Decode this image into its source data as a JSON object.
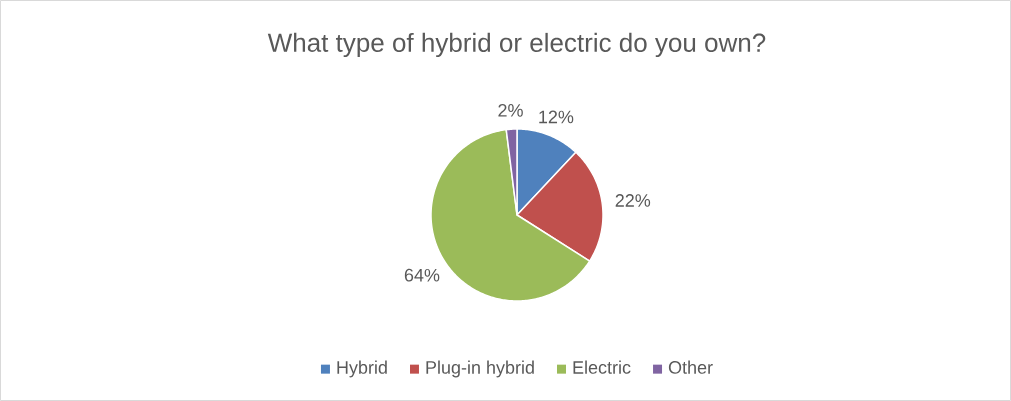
{
  "chart_data": {
    "type": "pie",
    "title": "What type of hybrid or electric do you own?",
    "categories": [
      "Hybrid",
      "Plug-in hybrid",
      "Electric",
      "Other"
    ],
    "values": [
      12,
      22,
      64,
      2
    ],
    "value_labels": [
      "12%",
      "22%",
      "64%",
      "2%"
    ],
    "colors": [
      "#4f81bd",
      "#c0504d",
      "#9bbb59",
      "#8064a2"
    ],
    "legend": "bottom"
  }
}
